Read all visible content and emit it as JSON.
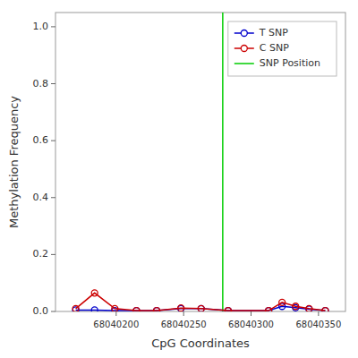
{
  "chart_data": {
    "type": "line",
    "x_label": "CpG Coordinates",
    "y_label": "Methylation Frequency",
    "x": [
      68040170,
      68040184,
      68040199,
      68040215,
      68040230,
      68040248,
      68040263,
      68040283,
      68040313,
      68040323,
      68040333,
      68040343,
      68040355
    ],
    "series": [
      {
        "name": "T SNP",
        "color": "#0000CC",
        "marker": "circle",
        "line_style": "solid",
        "values": [
          0.005,
          0.005,
          0.003,
          0.003,
          0.003,
          0.01,
          0.01,
          0.003,
          0.003,
          0.018,
          0.013,
          0.008,
          0.003
        ]
      },
      {
        "name": "C SNP",
        "color": "#CC0000",
        "marker": "circle",
        "line_style": "solid",
        "values": [
          0.01,
          0.065,
          0.01,
          0.003,
          0.003,
          0.012,
          0.01,
          0.003,
          0.003,
          0.032,
          0.018,
          0.01,
          0.003
        ]
      }
    ],
    "reference_line": {
      "name": "SNP Position",
      "x": 68040279,
      "color": "#00CC00"
    },
    "xlim": [
      68040155,
      68040370
    ],
    "ylim": [
      0.0,
      1.05
    ],
    "xticks": [
      68040200,
      68040250,
      68040300,
      68040350
    ],
    "yticks": [
      {
        "value": 0.0,
        "label": "0.0"
      },
      0.2,
      0.4,
      0.6,
      0.8,
      {
        "value": 1.0,
        "label": "1.0"
      }
    ],
    "legend": "upper right"
  }
}
